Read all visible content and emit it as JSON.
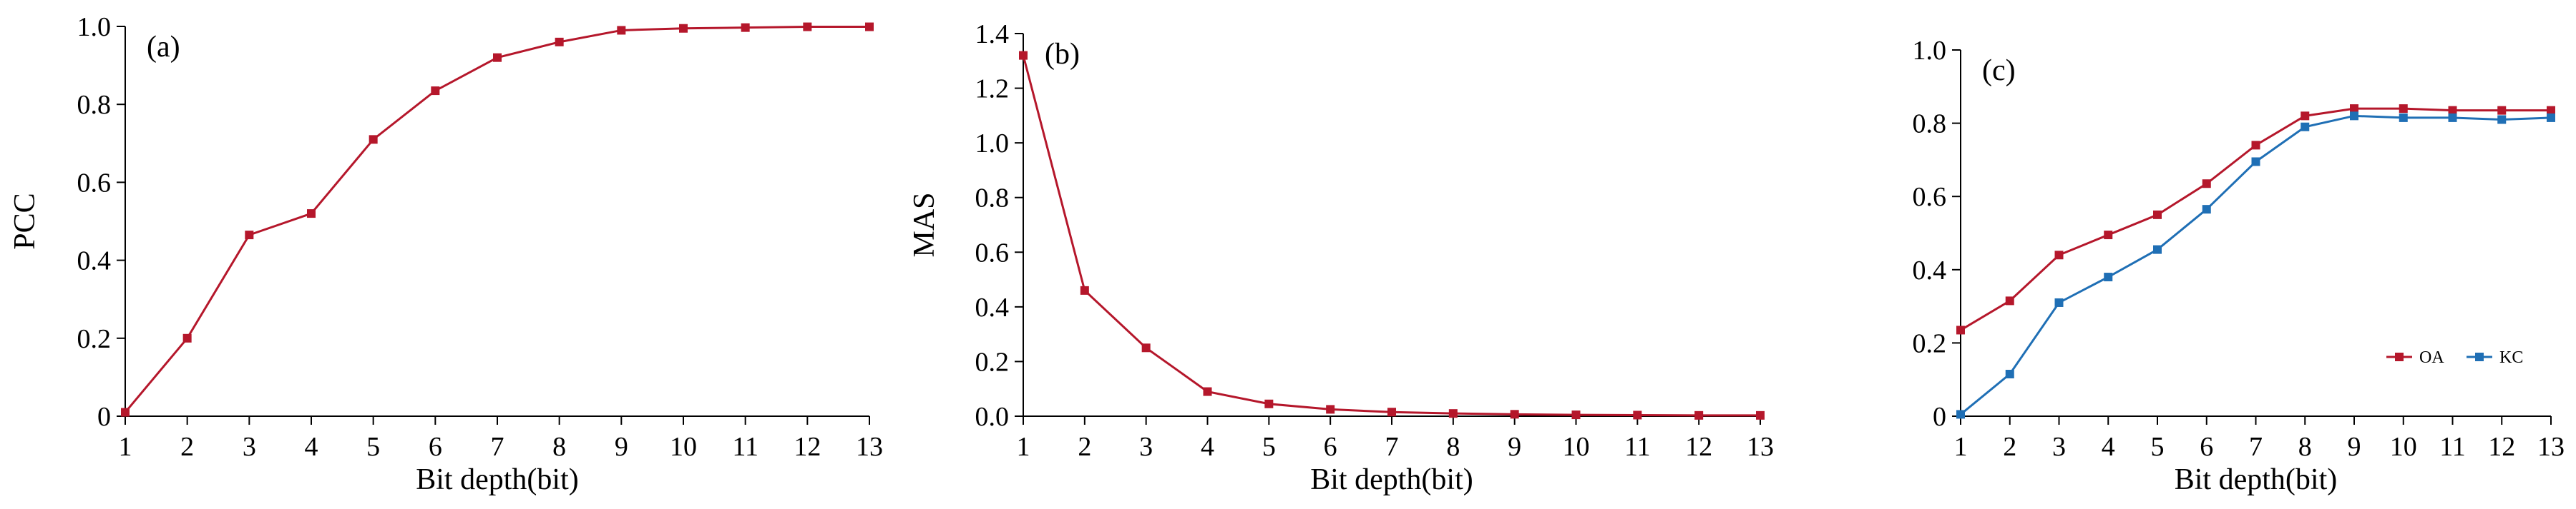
{
  "figure": {
    "panels": [
      "(a)",
      "(b)",
      "(c)"
    ]
  },
  "colors": {
    "red": "#b5172b",
    "blue": "#1f6fb5",
    "axis": "#000000"
  },
  "chart_data": [
    {
      "type": "line",
      "panel_label": "(a)",
      "xlabel": "Bit depth(bit)",
      "ylabel": "PCC",
      "xlim": [
        1,
        13
      ],
      "ylim": [
        0,
        1.0
      ],
      "x": [
        1,
        2,
        3,
        4,
        5,
        6,
        7,
        8,
        9,
        10,
        11,
        12,
        13
      ],
      "x_ticks": [
        1,
        2,
        3,
        4,
        5,
        6,
        7,
        8,
        9,
        10,
        11,
        12,
        13
      ],
      "y_ticks": [
        0,
        0.2,
        0.4,
        0.6,
        0.8,
        1.0
      ],
      "y_tick_labels": [
        "0",
        "0.2",
        "0.4",
        "0.6",
        "0.8",
        "1.0"
      ],
      "grid": false,
      "series": [
        {
          "color": "#b5172b",
          "values": [
            0.01,
            0.2,
            0.465,
            0.52,
            0.71,
            0.835,
            0.92,
            0.96,
            0.99,
            0.995,
            0.997,
            0.999,
            0.999
          ]
        }
      ]
    },
    {
      "type": "line",
      "panel_label": "(b)",
      "xlabel": "Bit depth(bit)",
      "ylabel": "MAS",
      "xlim": [
        1,
        13
      ],
      "ylim": [
        0,
        1.4
      ],
      "x": [
        1,
        2,
        3,
        4,
        5,
        6,
        7,
        8,
        9,
        10,
        11,
        12,
        13
      ],
      "x_ticks": [
        1,
        2,
        3,
        4,
        5,
        6,
        7,
        8,
        9,
        10,
        11,
        12,
        13
      ],
      "y_ticks": [
        0,
        0.2,
        0.4,
        0.6,
        0.8,
        1.0,
        1.2,
        1.4
      ],
      "y_tick_labels": [
        "0.0",
        "0.2",
        "0.4",
        "0.6",
        "0.8",
        "1.0",
        "1.2",
        "1.4"
      ],
      "grid": false,
      "series": [
        {
          "color": "#b5172b",
          "values": [
            1.32,
            0.46,
            0.25,
            0.09,
            0.045,
            0.025,
            0.015,
            0.01,
            0.007,
            0.005,
            0.004,
            0.003,
            0.003
          ]
        }
      ]
    },
    {
      "type": "line",
      "panel_label": "(c)",
      "xlabel": "Bit depth(bit)",
      "ylabel": "",
      "xlim": [
        1,
        13
      ],
      "ylim": [
        0,
        1.0
      ],
      "x": [
        1,
        2,
        3,
        4,
        5,
        6,
        7,
        8,
        9,
        10,
        11,
        12,
        13
      ],
      "x_ticks": [
        1,
        2,
        3,
        4,
        5,
        6,
        7,
        8,
        9,
        10,
        11,
        12,
        13
      ],
      "y_ticks": [
        0,
        0.2,
        0.4,
        0.6,
        0.8,
        1.0
      ],
      "y_tick_labels": [
        "0",
        "0.2",
        "0.4",
        "0.6",
        "0.8",
        "1.0"
      ],
      "grid": false,
      "legend": "bottom-right",
      "series": [
        {
          "name": "OA",
          "color": "#b5172b",
          "values": [
            0.235,
            0.315,
            0.44,
            0.495,
            0.55,
            0.635,
            0.74,
            0.82,
            0.84,
            0.84,
            0.835,
            0.835,
            0.835
          ]
        },
        {
          "name": "KC",
          "color": "#1f6fb5",
          "values": [
            0.005,
            0.115,
            0.31,
            0.38,
            0.455,
            0.565,
            0.695,
            0.79,
            0.82,
            0.815,
            0.815,
            0.81,
            0.815
          ]
        }
      ]
    }
  ]
}
